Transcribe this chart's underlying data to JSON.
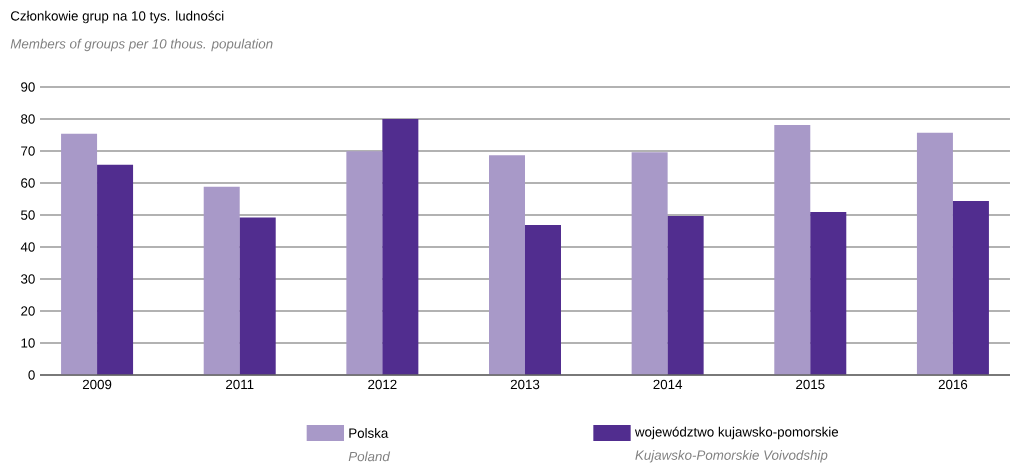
{
  "chart_data": {
    "type": "bar",
    "title": "Członkowie grup na 10 tys. ludności",
    "subtitle": "Members of groups per 10 thous. population",
    "categories": [
      "2009",
      "2011",
      "2012",
      "2013",
      "2014",
      "2015",
      "2016"
    ],
    "series": [
      {
        "name": "Polska",
        "color": "#a899c8",
        "values": [
          75.4,
          58.8,
          69.9,
          68.7,
          69.6,
          78.1,
          75.7
        ]
      },
      {
        "name": "województwo kujawsko-pomorskie",
        "color": "#512d8f",
        "values": [
          65.7,
          49.2,
          80.0,
          46.9,
          49.7,
          50.9,
          54.4
        ]
      }
    ],
    "annotations": [
      "Poland",
      "Kujawsko-Pomorskie Voivodship"
    ],
    "ylim": [
      0,
      90
    ],
    "yticks": [
      0,
      10,
      20,
      30,
      40,
      50,
      60,
      70,
      80,
      90
    ],
    "grid": "y",
    "legend": "bottom"
  }
}
